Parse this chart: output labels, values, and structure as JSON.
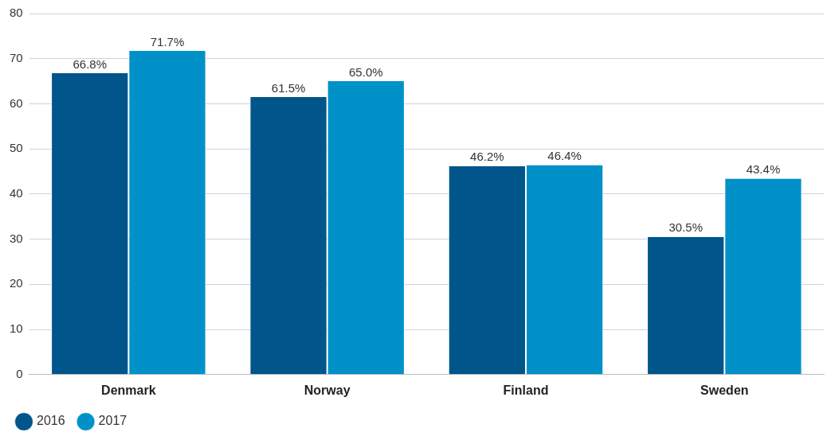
{
  "chart_data": {
    "type": "bar",
    "categories": [
      "Denmark",
      "Norway",
      "Finland",
      "Sweden"
    ],
    "series": [
      {
        "name": "2016",
        "color": "#00558a",
        "values": [
          66.8,
          61.5,
          46.2,
          30.5
        ],
        "value_labels": [
          "66.8%",
          "61.5%",
          "46.2%",
          "30.5%"
        ]
      },
      {
        "name": "2017",
        "color": "#0091c8",
        "values": [
          71.7,
          65.0,
          46.4,
          43.4
        ],
        "value_labels": [
          "71.7%",
          "65.0%",
          "46.4%",
          "43.4%"
        ]
      }
    ],
    "ylim": [
      0,
      80
    ],
    "yticks": [
      0,
      10,
      20,
      30,
      40,
      50,
      60,
      70,
      80
    ],
    "grid": "y",
    "legend": "bottom left"
  }
}
